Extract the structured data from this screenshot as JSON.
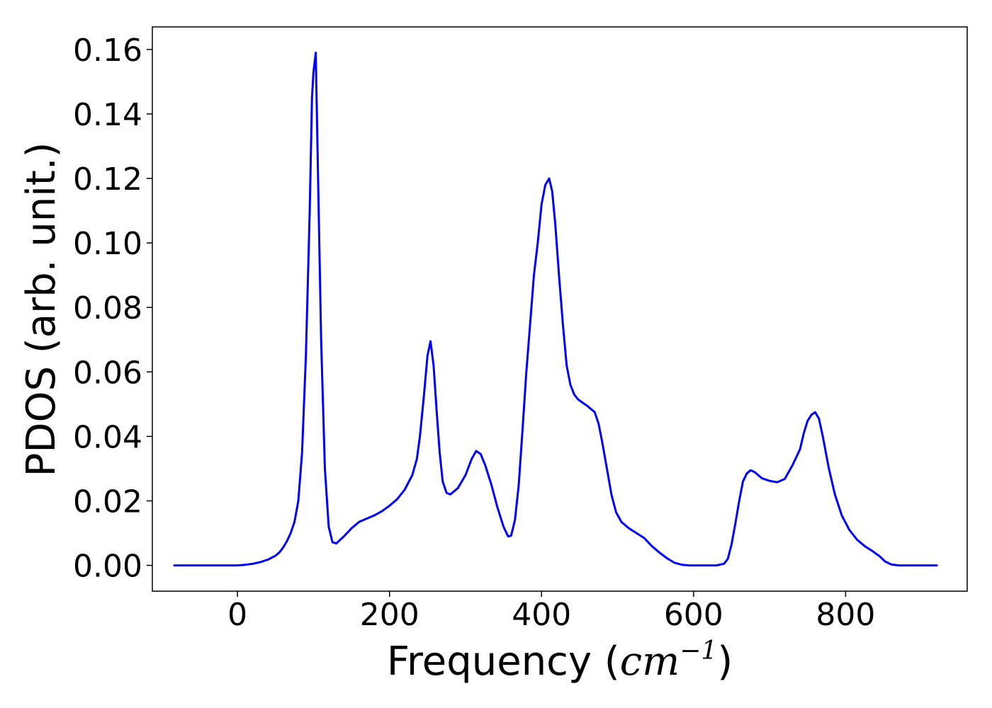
{
  "chart_data": {
    "type": "line",
    "title": "",
    "xlabel": {
      "prefix": "Frequency (",
      "unit_base": "cm",
      "unit_exp": "−1",
      "suffix": ")"
    },
    "ylabel": "PDOS (arb. unit.)",
    "xlim": [
      -112,
      960
    ],
    "ylim": [
      -0.008,
      0.167
    ],
    "xticks": [
      0,
      200,
      400,
      600,
      800
    ],
    "xtick_labels": [
      "0",
      "200",
      "400",
      "600",
      "800"
    ],
    "yticks": [
      0.0,
      0.02,
      0.04,
      0.06,
      0.08,
      0.1,
      0.12,
      0.14,
      0.16
    ],
    "ytick_labels": [
      "0.00",
      "0.02",
      "0.04",
      "0.06",
      "0.08",
      "0.10",
      "0.12",
      "0.14",
      "0.16"
    ],
    "grid": false,
    "line_color": "#0000ff",
    "series": [
      {
        "points": [
          [
            -83,
            0
          ],
          [
            -40,
            0
          ],
          [
            0,
            0
          ],
          [
            10,
            0.0002
          ],
          [
            20,
            0.0005
          ],
          [
            30,
            0.001
          ],
          [
            40,
            0.0018
          ],
          [
            50,
            0.003
          ],
          [
            55,
            0.004
          ],
          [
            60,
            0.0055
          ],
          [
            65,
            0.0075
          ],
          [
            70,
            0.01
          ],
          [
            75,
            0.0135
          ],
          [
            80,
            0.02
          ],
          [
            85,
            0.035
          ],
          [
            90,
            0.065
          ],
          [
            95,
            0.11
          ],
          [
            98,
            0.145
          ],
          [
            100,
            0.153
          ],
          [
            103,
            0.159
          ],
          [
            106,
            0.12
          ],
          [
            110,
            0.07
          ],
          [
            115,
            0.03
          ],
          [
            120,
            0.012
          ],
          [
            125,
            0.0072
          ],
          [
            130,
            0.0068
          ],
          [
            140,
            0.009
          ],
          [
            150,
            0.0115
          ],
          [
            160,
            0.0135
          ],
          [
            170,
            0.0145
          ],
          [
            180,
            0.0155
          ],
          [
            190,
            0.0168
          ],
          [
            200,
            0.0185
          ],
          [
            210,
            0.0205
          ],
          [
            220,
            0.0235
          ],
          [
            230,
            0.028
          ],
          [
            236,
            0.033
          ],
          [
            240,
            0.04
          ],
          [
            245,
            0.052
          ],
          [
            250,
            0.065
          ],
          [
            254,
            0.0695
          ],
          [
            258,
            0.062
          ],
          [
            262,
            0.048
          ],
          [
            266,
            0.035
          ],
          [
            270,
            0.026
          ],
          [
            275,
            0.0225
          ],
          [
            280,
            0.022
          ],
          [
            290,
            0.024
          ],
          [
            300,
            0.028
          ],
          [
            308,
            0.033
          ],
          [
            314,
            0.0355
          ],
          [
            320,
            0.0345
          ],
          [
            326,
            0.031
          ],
          [
            334,
            0.025
          ],
          [
            342,
            0.018
          ],
          [
            350,
            0.012
          ],
          [
            356,
            0.009
          ],
          [
            360,
            0.0092
          ],
          [
            365,
            0.014
          ],
          [
            370,
            0.025
          ],
          [
            375,
            0.042
          ],
          [
            380,
            0.06
          ],
          [
            385,
            0.075
          ],
          [
            390,
            0.09
          ],
          [
            395,
            0.1
          ],
          [
            400,
            0.112
          ],
          [
            405,
            0.118
          ],
          [
            410,
            0.12
          ],
          [
            414,
            0.116
          ],
          [
            418,
            0.106
          ],
          [
            423,
            0.09
          ],
          [
            428,
            0.075
          ],
          [
            433,
            0.062
          ],
          [
            438,
            0.056
          ],
          [
            443,
            0.053
          ],
          [
            448,
            0.0515
          ],
          [
            455,
            0.0503
          ],
          [
            460,
            0.0495
          ],
          [
            465,
            0.0485
          ],
          [
            470,
            0.0475
          ],
          [
            475,
            0.044
          ],
          [
            480,
            0.038
          ],
          [
            486,
            0.03
          ],
          [
            492,
            0.022
          ],
          [
            498,
            0.0165
          ],
          [
            505,
            0.0135
          ],
          [
            515,
            0.0115
          ],
          [
            525,
            0.01
          ],
          [
            535,
            0.0085
          ],
          [
            545,
            0.006
          ],
          [
            555,
            0.004
          ],
          [
            565,
            0.0022
          ],
          [
            575,
            0.0008
          ],
          [
            585,
            0.0002
          ],
          [
            595,
            0
          ],
          [
            630,
            0
          ],
          [
            640,
            0.0005
          ],
          [
            645,
            0.002
          ],
          [
            650,
            0.0065
          ],
          [
            655,
            0.013
          ],
          [
            660,
            0.02
          ],
          [
            665,
            0.026
          ],
          [
            670,
            0.0285
          ],
          [
            675,
            0.0295
          ],
          [
            680,
            0.029
          ],
          [
            690,
            0.027
          ],
          [
            700,
            0.0262
          ],
          [
            710,
            0.0258
          ],
          [
            720,
            0.0268
          ],
          [
            730,
            0.031
          ],
          [
            740,
            0.036
          ],
          [
            745,
            0.041
          ],
          [
            750,
            0.0448
          ],
          [
            755,
            0.0467
          ],
          [
            760,
            0.0475
          ],
          [
            765,
            0.0455
          ],
          [
            770,
            0.04
          ],
          [
            778,
            0.03
          ],
          [
            786,
            0.022
          ],
          [
            795,
            0.0155
          ],
          [
            805,
            0.011
          ],
          [
            815,
            0.008
          ],
          [
            825,
            0.006
          ],
          [
            835,
            0.0045
          ],
          [
            845,
            0.0028
          ],
          [
            852,
            0.0012
          ],
          [
            860,
            0.0003
          ],
          [
            870,
            0
          ],
          [
            920,
            0
          ]
        ]
      }
    ]
  }
}
